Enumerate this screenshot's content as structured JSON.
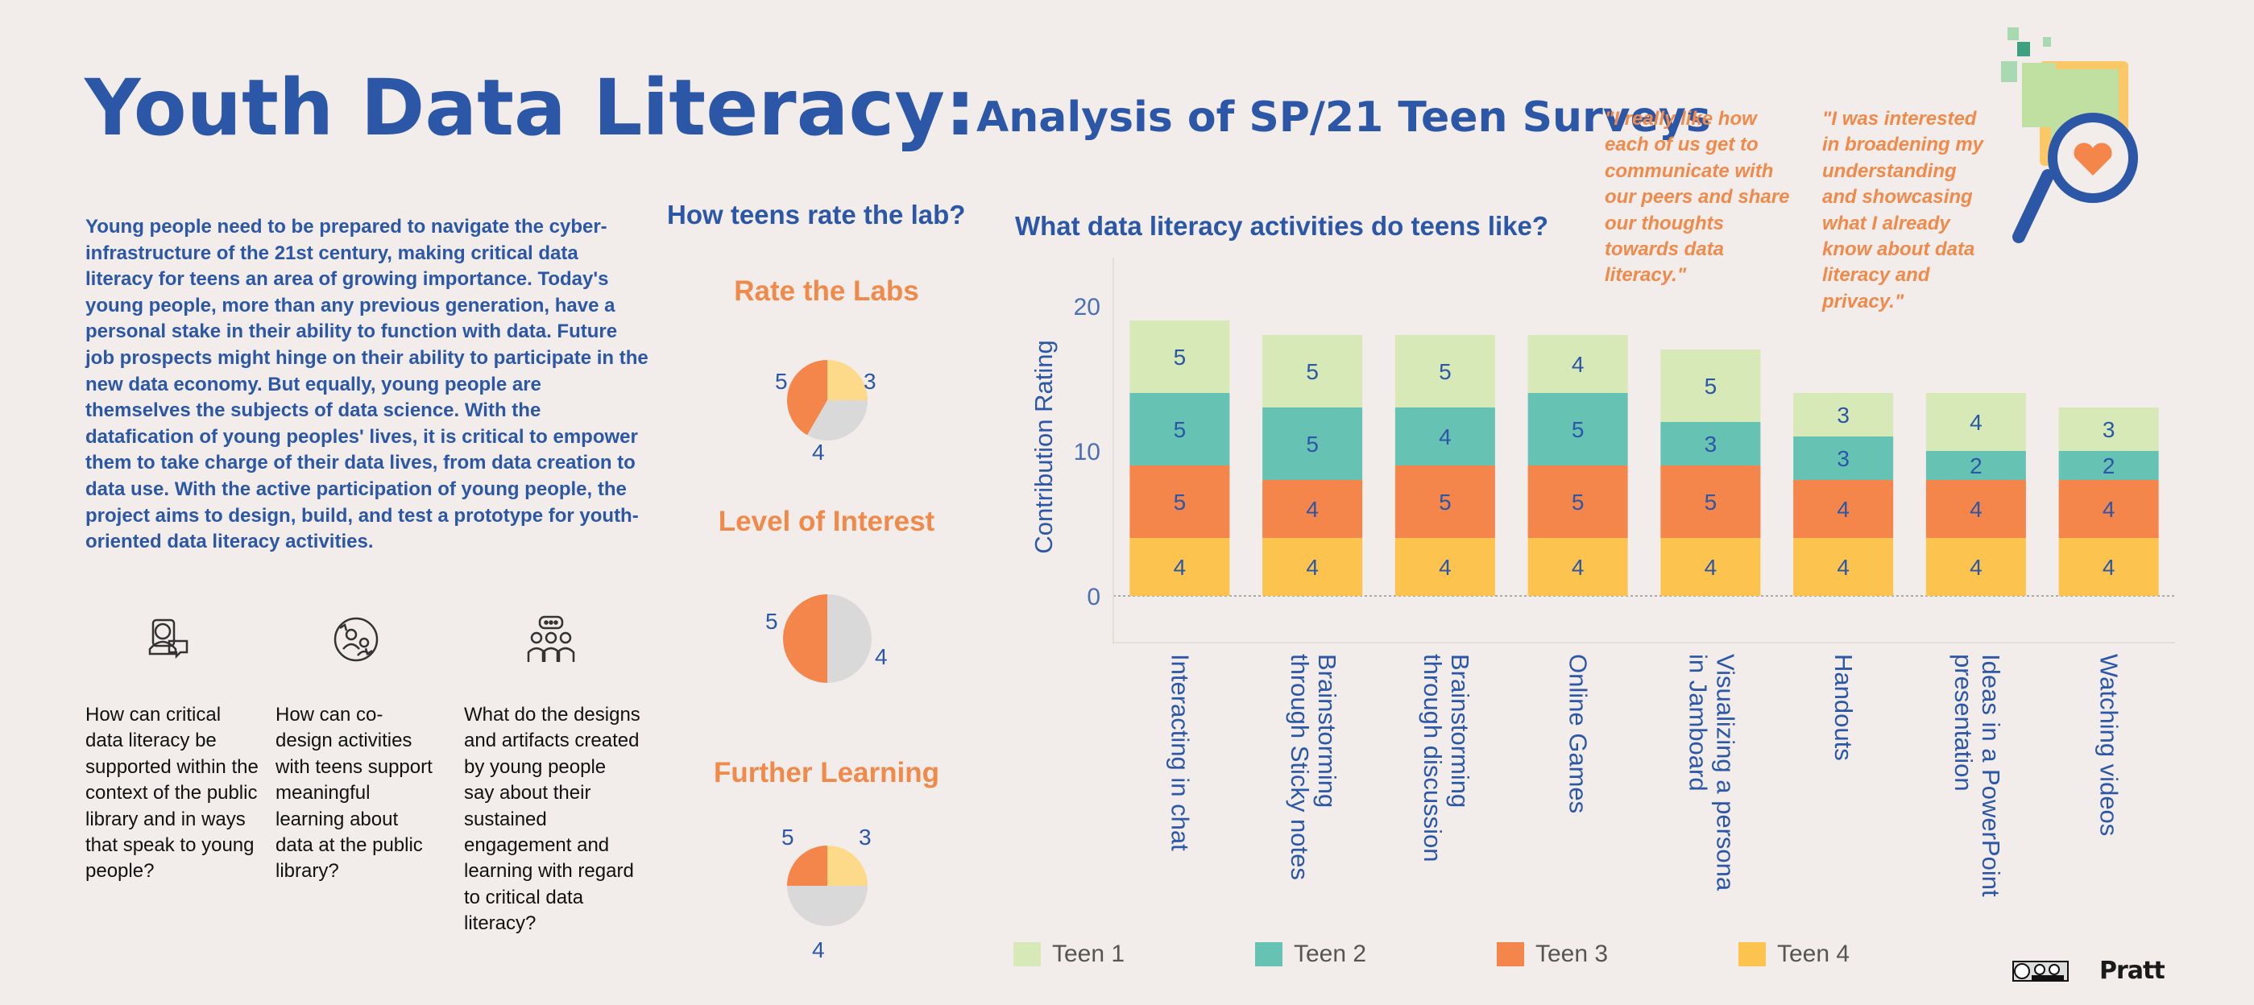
{
  "header": {
    "title": "Youth Data Literacy:",
    "subtitle": "Analysis of SP/21 Teen Surveys"
  },
  "intro": "Young people need to be prepared to navigate the cyber-infrastructure of the 21st century, making critical data literacy for teens an area of growing importance. Today's young people, more than any previous generation, have a personal stake in their ability to function with data. Future job prospects might hinge on their ability to participate in the new data economy. But equally, young people are themselves the subjects of data science. With the datafication of young peoples' lives, it is critical to empower them to take charge of their data lives, from data creation to data use. With the active participation of young people, the project aims to design, build, and test a prototype for youth-oriented data literacy activities.",
  "questions": [
    {
      "icon": "user-chat-icon",
      "text": "How can critical data literacy be supported within the context of the public library and in ways that speak to young people?"
    },
    {
      "icon": "collaboration-cycle-icon",
      "text": "How can co-design activities with teens support meaningful learning about data at the public library?"
    },
    {
      "icon": "group-discussion-icon",
      "text": "What do the designs and artifacts created by young people say about their sustained engagement and learning with regard to critical data literacy?"
    }
  ],
  "quotes": [
    "\"I really like how each of us get to communicate with our peers and share our thoughts towards data literacy.\"",
    "\"I was interested in broadening my understanding and showcasing what I already know about data literacy and privacy.\""
  ],
  "colors": {
    "title_blue": "#2b57a6",
    "accent_orange": "#f08a4b",
    "teen1": "#d6e9b6",
    "teen2": "#66c2b3",
    "teen3": "#f4854b",
    "teen4": "#fcc34f",
    "pie_gray": "#d9d9d9",
    "pie_yellow": "#fdd98a"
  },
  "chart_data": [
    {
      "type": "pie",
      "title": "Rate the Labs",
      "section_title": "How teens rate the lab?",
      "slices": [
        {
          "label": "5",
          "value": 5,
          "color": "#f4854b"
        },
        {
          "label": "3",
          "value": 3,
          "color": "#fdd98a"
        },
        {
          "label": "4",
          "value": 4,
          "color": "#d9d9d9"
        }
      ]
    },
    {
      "type": "pie",
      "title": "Level of Interest",
      "slices": [
        {
          "label": "5",
          "value": 5,
          "color": "#f4854b"
        },
        {
          "label": "4",
          "value": 5,
          "color": "#d9d9d9"
        }
      ]
    },
    {
      "type": "pie",
      "title": "Further Learning",
      "slices": [
        {
          "label": "5",
          "value": 5,
          "color": "#f4854b"
        },
        {
          "label": "3",
          "value": 5,
          "color": "#fdd98a"
        },
        {
          "label": "4",
          "value": 10,
          "color": "#d9d9d9"
        }
      ]
    },
    {
      "type": "bar",
      "stacked": true,
      "title": "What data literacy activities do teens like?",
      "ylabel": "Contribution Rating",
      "ylim": [
        0,
        23
      ],
      "yticks": [
        0,
        10,
        20
      ],
      "legend": "bottom",
      "categories": [
        "Interacting in chat",
        "Brainstorming through Sticky notes",
        "Brainstorming through discussion",
        "Online Games",
        "Visualizing a persona in Jamboard",
        "Handouts",
        "Ideas in a PowerPoint presentation",
        "Watching videos"
      ],
      "category_lines": [
        [
          "Interacting in chat"
        ],
        [
          "Brainstorming",
          "through Sticky notes"
        ],
        [
          "Brainstorming",
          "through discussion"
        ],
        [
          "Online Games"
        ],
        [
          "Visualizing a persona",
          "in Jamboard"
        ],
        [
          "Handouts"
        ],
        [
          "Ideas in a PowerPoint",
          "presentation"
        ],
        [
          "Watching videos"
        ]
      ],
      "series": [
        {
          "name": "Teen 4",
          "color": "#fcc34f",
          "values": [
            4,
            4,
            4,
            4,
            4,
            4,
            4,
            4
          ]
        },
        {
          "name": "Teen 3",
          "color": "#f4854b",
          "values": [
            5,
            4,
            5,
            5,
            5,
            4,
            4,
            4
          ]
        },
        {
          "name": "Teen 2",
          "color": "#66c2b3",
          "values": [
            5,
            5,
            4,
            5,
            3,
            3,
            2,
            2
          ]
        },
        {
          "name": "Teen 1",
          "color": "#d6e9b6",
          "values": [
            5,
            5,
            5,
            4,
            5,
            3,
            4,
            3
          ]
        }
      ],
      "legend_order": [
        "Teen 1",
        "Teen 2",
        "Teen 3",
        "Teen 4"
      ]
    }
  ],
  "footer": {
    "license": "cc by nc",
    "brand": "Pratt"
  }
}
